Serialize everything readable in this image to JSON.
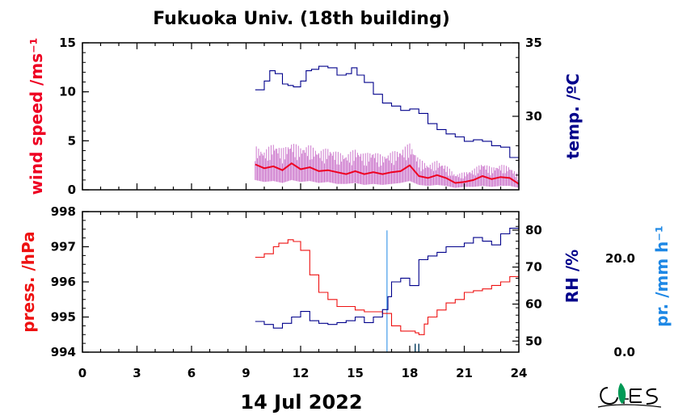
{
  "title": "Fukuoka Univ. (18th building)",
  "date_label": "14 Jul 2022",
  "colors": {
    "wind": "#ee0022",
    "wind_raw": "#cc77cc",
    "temp": "#00008b",
    "press": "#ee1111",
    "rh": "#00008b",
    "precip": "#1e88e5",
    "axis": "#000000",
    "logo": "#009955"
  },
  "chart_data": [
    {
      "type": "line",
      "panel": "top",
      "xlim": [
        0,
        24
      ],
      "x_ticks": [
        0,
        3,
        6,
        9,
        12,
        15,
        18,
        21,
        24
      ],
      "x_tick_labels": [
        "0",
        "3",
        "6",
        "9",
        "12",
        "15",
        "18",
        "21",
        "24"
      ],
      "y_left": {
        "label": "wind speed /ms⁻¹",
        "lim": [
          0,
          15
        ],
        "ticks": [
          0,
          5,
          10,
          15
        ],
        "tick_labels": [
          "0",
          "5",
          "10",
          "15"
        ]
      },
      "y_right": {
        "label": "temp. /ºC",
        "lim": [
          25,
          35
        ],
        "ticks": [
          30,
          35
        ],
        "tick_labels": [
          "30",
          "35"
        ]
      },
      "series": [
        {
          "axis": "left",
          "style": "smoothed",
          "x": [
            9.5,
            10,
            10.5,
            11,
            11.5,
            12,
            12.5,
            13,
            13.5,
            14,
            14.5,
            15,
            15.5,
            16,
            16.5,
            17,
            17.5,
            18,
            18.5,
            19,
            19.5,
            20,
            20.5,
            21,
            21.5,
            22,
            22.5,
            23,
            23.5,
            24
          ],
          "y": [
            2.6,
            2.2,
            2.4,
            2.0,
            2.7,
            2.1,
            2.3,
            1.9,
            2.0,
            1.8,
            1.6,
            1.9,
            1.6,
            1.8,
            1.6,
            1.8,
            1.9,
            2.5,
            1.4,
            1.2,
            1.5,
            1.2,
            0.7,
            0.8,
            1.0,
            1.4,
            1.1,
            1.3,
            1.2,
            0.6
          ]
        },
        {
          "axis": "left",
          "style": "raw",
          "x": [
            9.5,
            10,
            10.5,
            11,
            11.5,
            12,
            12.5,
            13,
            13.5,
            14,
            14.5,
            15,
            15.5,
            16,
            16.5,
            17,
            17.5,
            18,
            18.5,
            19,
            19.5,
            20,
            20.5,
            21,
            21.5,
            22,
            22.5,
            23,
            23.5,
            24
          ],
          "y_low": [
            1.0,
            0.8,
            0.9,
            0.7,
            1.0,
            0.8,
            0.9,
            0.7,
            0.8,
            0.6,
            0.6,
            0.7,
            0.5,
            0.6,
            0.5,
            0.6,
            0.7,
            0.9,
            0.5,
            0.4,
            0.5,
            0.4,
            0.2,
            0.3,
            0.3,
            0.4,
            0.3,
            0.4,
            0.4,
            0.2
          ],
          "y_high": [
            4.5,
            4.0,
            4.8,
            4.2,
            4.9,
            4.4,
            4.6,
            4.0,
            4.3,
            3.9,
            3.6,
            4.2,
            3.7,
            4.0,
            3.5,
            3.9,
            4.1,
            4.8,
            3.2,
            2.6,
            3.0,
            2.5,
            1.6,
            1.8,
            2.1,
            2.8,
            2.3,
            2.6,
            2.4,
            1.5
          ]
        },
        {
          "axis": "right",
          "x": [
            9.5,
            10,
            10.3,
            10.6,
            11,
            11.3,
            11.6,
            12,
            12.3,
            12.6,
            13,
            13.5,
            14,
            14.5,
            14.8,
            15.1,
            15.5,
            16,
            16.5,
            17,
            17.5,
            18,
            18.5,
            19,
            19.5,
            20,
            20.5,
            21,
            21.5,
            22,
            22.5,
            23,
            23.5,
            24
          ],
          "y": [
            31.8,
            32.4,
            33.1,
            32.9,
            32.2,
            32.1,
            32.0,
            32.4,
            33.1,
            33.2,
            33.4,
            33.3,
            32.8,
            32.9,
            33.3,
            32.8,
            32.3,
            31.5,
            30.9,
            30.7,
            30.4,
            30.5,
            30.2,
            29.5,
            29.1,
            28.8,
            28.6,
            28.3,
            28.4,
            28.3,
            28.0,
            27.9,
            27.2,
            26.5
          ]
        }
      ]
    },
    {
      "type": "line",
      "panel": "bottom",
      "xlim": [
        0,
        24
      ],
      "x_ticks": [
        0,
        3,
        6,
        9,
        12,
        15,
        18,
        21,
        24
      ],
      "x_tick_labels": [
        "0",
        "3",
        "6",
        "9",
        "12",
        "15",
        "18",
        "21",
        "24"
      ],
      "y_left": {
        "label": "press. /hPa",
        "lim": [
          994,
          998
        ],
        "ticks": [
          994,
          995,
          996,
          997,
          998
        ],
        "tick_labels": [
          "994",
          "995",
          "996",
          "997",
          "998"
        ]
      },
      "y_right": {
        "label": "RH /%",
        "lim": [
          47,
          85
        ],
        "ticks": [
          50,
          60,
          70,
          80
        ],
        "tick_labels": [
          "50",
          "60",
          "70",
          "80"
        ]
      },
      "y_precip": {
        "label": "pr. /mm h⁻¹",
        "lim": [
          0,
          30
        ],
        "ticks": [
          0,
          20
        ],
        "tick_labels": [
          "0.0",
          "20.0"
        ]
      },
      "series": [
        {
          "axis": "left",
          "x": [
            9.5,
            10,
            10.3,
            10.5,
            10.8,
            11,
            11.3,
            11.6,
            12,
            12.5,
            13,
            13.5,
            14,
            14.5,
            15,
            15.5,
            16,
            16.5,
            16.8,
            17,
            17.5,
            18,
            18.3,
            18.5,
            18.8,
            19,
            19.5,
            20,
            20.5,
            21,
            21.5,
            22,
            22.5,
            23,
            23.5,
            24
          ],
          "y": [
            996.7,
            996.8,
            996.8,
            997.0,
            997.1,
            997.1,
            997.2,
            997.15,
            996.9,
            996.2,
            995.7,
            995.5,
            995.3,
            995.3,
            995.2,
            995.15,
            995.15,
            995.1,
            995.1,
            994.75,
            994.6,
            994.6,
            994.55,
            994.5,
            994.8,
            995.0,
            995.2,
            995.4,
            995.5,
            995.7,
            995.75,
            995.8,
            995.9,
            996.0,
            996.15,
            996.1
          ]
        },
        {
          "axis": "right",
          "x": [
            9.5,
            10,
            10.5,
            11,
            11.5,
            12,
            12.5,
            13,
            13.5,
            14,
            14.5,
            15,
            15.5,
            16,
            16.5,
            16.8,
            17,
            17.5,
            18,
            18.5,
            19,
            19.5,
            20,
            20.5,
            21,
            21.5,
            22,
            22.5,
            23,
            23.5,
            24
          ],
          "y": [
            55.3,
            54.5,
            53.5,
            54.8,
            56.5,
            58.0,
            55.5,
            54.8,
            54.5,
            55.0,
            55.5,
            56.5,
            55.0,
            56.5,
            58.5,
            62.0,
            66.0,
            67.0,
            65.0,
            72.0,
            73.0,
            74.0,
            75.5,
            75.5,
            76.5,
            78.0,
            77.0,
            76.0,
            79.0,
            80.5,
            81.5
          ]
        },
        {
          "axis": "precip",
          "type": "bar",
          "x": [
            16.75,
            18.3,
            18.5
          ],
          "y": [
            26.0,
            1.8,
            1.8
          ]
        }
      ]
    }
  ]
}
